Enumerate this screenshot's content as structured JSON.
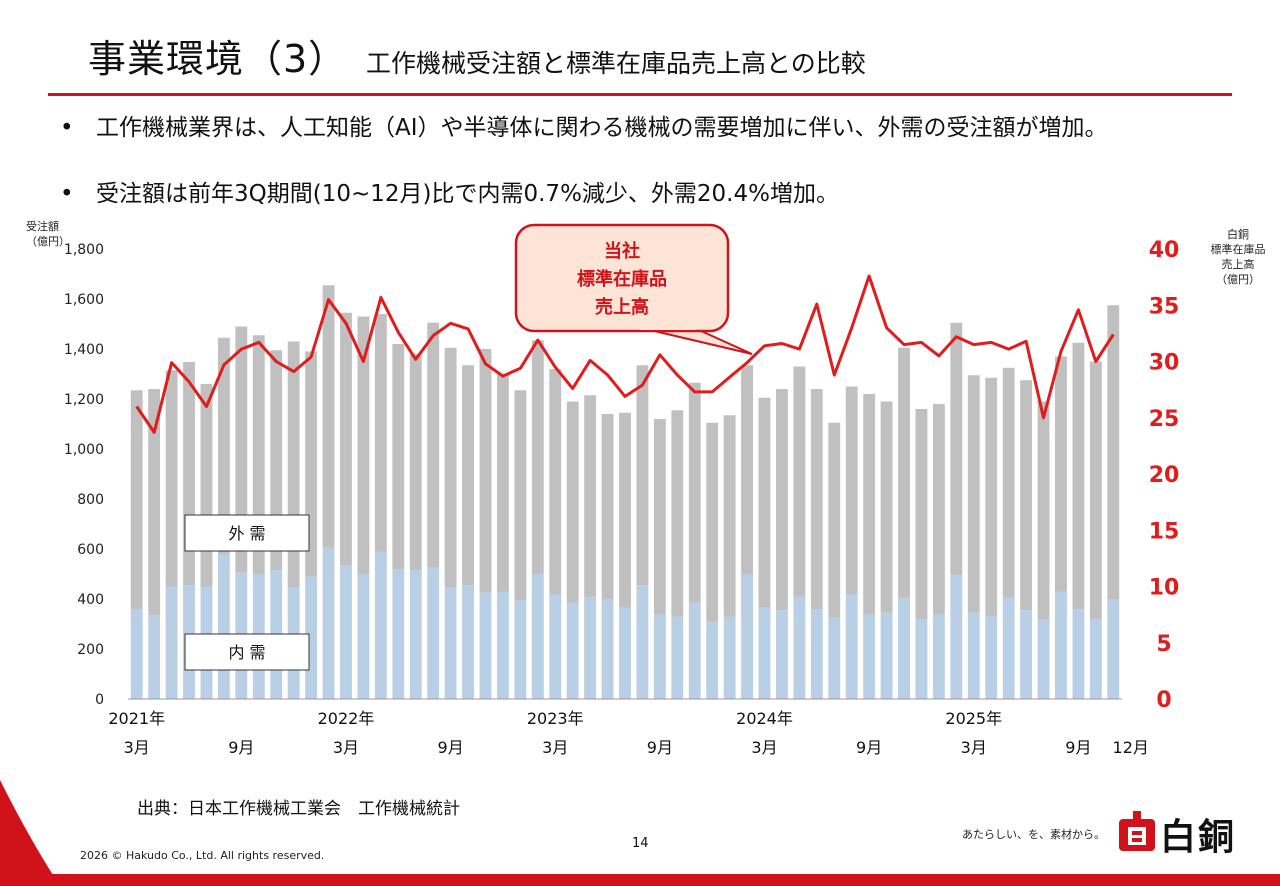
{
  "header": {
    "title": "事業環境（3）",
    "subtitle": "工作機械受注額と標準在庫品売上高との比較"
  },
  "bullets": [
    {
      "marker": "•",
      "text": "工作機械業界は、人工知能（AI）や半導体に関わる機械の需要増加に伴い、外需の受注額が増加。"
    },
    {
      "marker": "•",
      "text": "受注額は前年3Q期間(10~12月)比で内需0.7%減少、外需20.4%増加。"
    }
  ],
  "source": "出典：日本工作機械工業会　工作機械統計",
  "page_number": "14",
  "copyright": "2026 © Hakudo Co., Ltd. All rights reserved.",
  "tagline": "あたらしい、を、素材から。",
  "brand": "白銅",
  "colors": {
    "accent": "#d0121b",
    "domestic": "#b8cfe6",
    "foreign": "#c0c0c0",
    "line": "#e01c1c"
  },
  "chart_data": {
    "type": "bar",
    "left_axis_label": [
      "受注額",
      "（億円）"
    ],
    "right_axis_label": [
      "白銅",
      "標準在庫品",
      "売上高",
      "（億円）"
    ],
    "left_ylim": [
      0,
      1800
    ],
    "left_ticks": [
      "0",
      "200",
      "400",
      "600",
      "800",
      "1,000",
      "1,200",
      "1,400",
      "1,600",
      "1,800"
    ],
    "right_ylim": [
      0,
      40
    ],
    "right_ticks": [
      "0",
      "5",
      "10",
      "15",
      "20",
      "25",
      "30",
      "35",
      "40"
    ],
    "year_labels": [
      "2021年",
      "2022年",
      "2023年",
      "2024年",
      "2025年"
    ],
    "month_labels": [
      {
        "label": "3月",
        "index": 0
      },
      {
        "label": "9月",
        "index": 6
      },
      {
        "label": "3月",
        "index": 12
      },
      {
        "label": "9月",
        "index": 18
      },
      {
        "label": "3月",
        "index": 24
      },
      {
        "label": "9月",
        "index": 30
      },
      {
        "label": "3月",
        "index": 36
      },
      {
        "label": "9月",
        "index": 42
      },
      {
        "label": "3月",
        "index": 48
      },
      {
        "label": "9月",
        "index": 54
      },
      {
        "label": "12月",
        "index": 57
      }
    ],
    "legend_foreign": "外 需",
    "legend_domestic": "内 需",
    "callout": [
      "当社",
      "標準在庫品",
      "売上高"
    ],
    "series": [
      {
        "name": "内 需",
        "values": [
          360,
          335,
          450,
          455,
          450,
          580,
          505,
          500,
          515,
          445,
          490,
          605,
          535,
          500,
          590,
          520,
          515,
          525,
          445,
          455,
          425,
          430,
          395,
          500,
          420,
          385,
          410,
          400,
          365,
          455,
          340,
          330,
          385,
          310,
          330,
          500,
          365,
          355,
          410,
          360,
          325,
          420,
          340,
          345,
          405,
          320,
          340,
          495,
          345,
          330,
          405,
          355,
          320,
          430,
          360,
          320,
          400
        ]
      },
      {
        "name": "外 需",
        "values": [
          875,
          905,
          865,
          893,
          810,
          865,
          985,
          955,
          880,
          985,
          900,
          1050,
          1010,
          1030,
          950,
          900,
          865,
          980,
          960,
          880,
          975,
          870,
          840,
          935,
          900,
          805,
          805,
          740,
          780,
          880,
          780,
          825,
          880,
          795,
          805,
          835,
          840,
          885,
          920,
          880,
          780,
          830,
          880,
          845,
          1000,
          840,
          840,
          1010,
          950,
          955,
          920,
          920,
          870,
          940,
          1065,
          1030,
          1175
        ]
      },
      {
        "name": "標準在庫品売上高",
        "values": [
          26.0,
          23.7,
          29.9,
          28.2,
          26.0,
          29.7,
          31.1,
          31.7,
          30.0,
          29.1,
          30.4,
          35.5,
          33.4,
          30.0,
          35.7,
          32.6,
          30.2,
          32.3,
          33.4,
          32.9,
          29.8,
          28.7,
          29.4,
          31.9,
          29.5,
          27.6,
          30.1,
          28.8,
          26.9,
          27.9,
          30.6,
          28.8,
          27.3,
          27.3,
          28.6,
          29.9,
          31.4,
          31.6,
          31.1,
          35.1,
          28.8,
          33.0,
          37.6,
          33.0,
          31.5,
          31.7,
          30.5,
          32.2,
          31.5,
          31.7,
          31.1,
          31.8,
          25.0,
          30.9,
          34.6,
          30.0,
          32.4
        ]
      }
    ]
  }
}
